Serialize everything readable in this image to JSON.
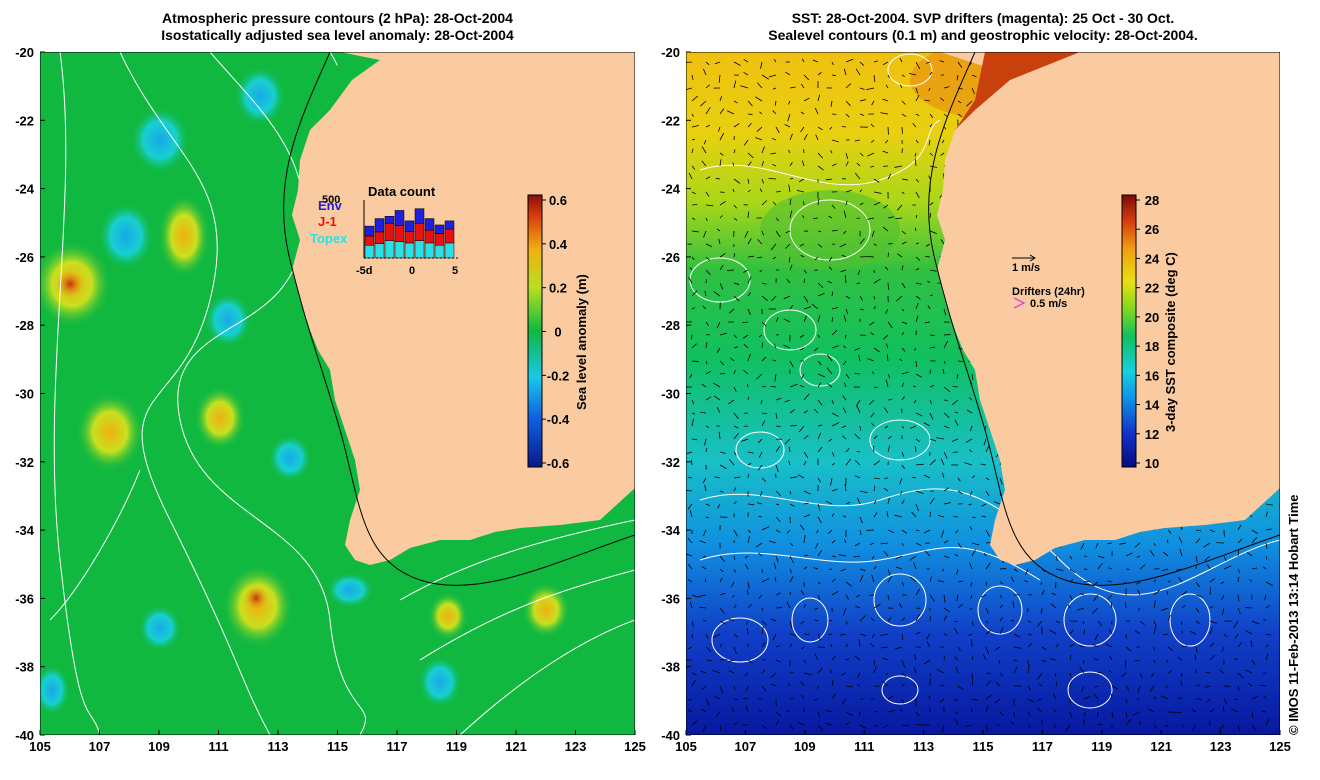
{
  "left_panel": {
    "title_line1": "Atmospheric pressure contours (2 hPa): 28-Oct-2004",
    "title_line2": "Isostatically adjusted sea level anomaly: 28-Oct-2004",
    "colorbar_label": "Sea level anomaly (m)",
    "colorbar_ticks": [
      "0.6",
      "0.4",
      "0.2",
      "0",
      "-0.2",
      "-0.4",
      "-0.6"
    ],
    "inset": {
      "title": "Data count",
      "max_label": "500",
      "legend": [
        {
          "label": "Env",
          "color": "#1f1fe0"
        },
        {
          "label": "J-1",
          "color": "#e81010"
        },
        {
          "label": "Topex",
          "color": "#2ae0e8"
        }
      ],
      "x_ticks": [
        "-5d",
        "0",
        "5"
      ],
      "bars": [
        {
          "topex": 0.22,
          "j1": 0.16,
          "env": 0.17
        },
        {
          "topex": 0.25,
          "j1": 0.2,
          "env": 0.23
        },
        {
          "topex": 0.3,
          "j1": 0.3,
          "env": 0.12
        },
        {
          "topex": 0.28,
          "j1": 0.28,
          "env": 0.26
        },
        {
          "topex": 0.26,
          "j1": 0.2,
          "env": 0.18
        },
        {
          "topex": 0.3,
          "j1": 0.3,
          "env": 0.25
        },
        {
          "topex": 0.26,
          "j1": 0.22,
          "env": 0.2
        },
        {
          "topex": 0.22,
          "j1": 0.2,
          "env": 0.15
        },
        {
          "topex": 0.26,
          "j1": 0.24,
          "env": 0.14
        }
      ]
    }
  },
  "right_panel": {
    "title_line1": "SST: 28-Oct-2004. SVP drifters (magenta): 25 Oct - 30 Oct.",
    "title_line2": "Sealevel contours (0.1 m) and geostrophic velocity: 28-Oct-2004.",
    "colorbar_label": "3-day SST composite (deg C)",
    "colorbar_ticks": [
      "28",
      "26",
      "24",
      "22",
      "20",
      "18",
      "16",
      "14",
      "12",
      "10"
    ],
    "velocity_scale": "1 m/s",
    "drifters_title": "Drifters (24hr)",
    "drifters_scale": "0.5 m/s"
  },
  "axes": {
    "lon_ticks": [
      "105",
      "107",
      "109",
      "111",
      "113",
      "115",
      "117",
      "119",
      "121",
      "123",
      "125"
    ],
    "lat_ticks": [
      "-20",
      "-22",
      "-24",
      "-26",
      "-28",
      "-30",
      "-32",
      "-34",
      "-36",
      "-38",
      "-40"
    ]
  },
  "colors": {
    "land": "#facba0",
    "ocean_green": "#10b840",
    "contour": "#ffffff"
  },
  "stamp": "© IMOS 11-Feb-2013 13:14 Hobart Time"
}
